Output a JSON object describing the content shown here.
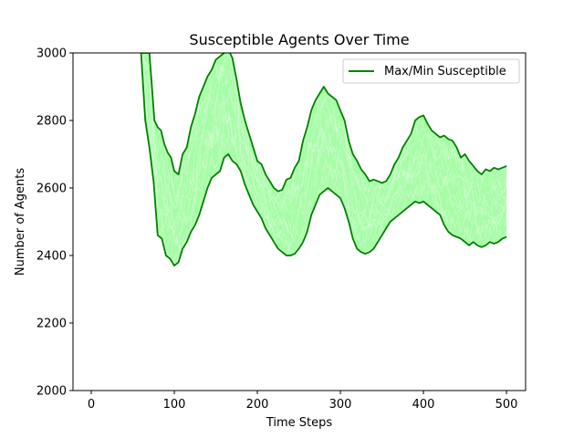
{
  "chart_data": {
    "type": "line",
    "title": "Susceptible Agents Over Time",
    "xlabel": "Time Steps",
    "ylabel": "Number of Agents",
    "xlim": [
      -22,
      523
    ],
    "ylim": [
      2000,
      3000
    ],
    "x_ticks": [
      0,
      100,
      200,
      300,
      400,
      500
    ],
    "y_ticks": [
      2000,
      2200,
      2400,
      2600,
      2800,
      3000
    ],
    "grid": false,
    "legend": {
      "position": "top-right",
      "entries": [
        "Max/Min Susceptible"
      ]
    },
    "colors": {
      "band": "#98fb98",
      "minmax": "#008000"
    },
    "series": [
      {
        "name": "Max/Min Susceptible",
        "role": "max",
        "x": [
          60,
          65,
          70,
          73,
          76,
          80,
          84,
          88,
          92,
          96,
          100,
          105,
          110,
          115,
          120,
          125,
          130,
          135,
          140,
          145,
          150,
          155,
          160,
          165,
          170,
          175,
          180,
          185,
          190,
          195,
          200,
          205,
          210,
          215,
          220,
          225,
          230,
          235,
          240,
          245,
          250,
          255,
          260,
          265,
          270,
          275,
          280,
          285,
          290,
          295,
          300,
          305,
          310,
          315,
          320,
          325,
          330,
          335,
          340,
          345,
          350,
          355,
          360,
          365,
          370,
          375,
          380,
          385,
          390,
          395,
          400,
          405,
          410,
          415,
          420,
          425,
          430,
          435,
          440,
          445,
          450,
          455,
          460,
          465,
          470,
          475,
          480,
          485,
          490,
          495,
          500
        ],
        "values": [
          3000,
          3000,
          3000,
          2900,
          2800,
          2780,
          2770,
          2730,
          2705,
          2690,
          2650,
          2640,
          2700,
          2720,
          2780,
          2820,
          2870,
          2900,
          2930,
          2950,
          2980,
          2990,
          3000,
          3010,
          2985,
          2920,
          2850,
          2800,
          2760,
          2720,
          2680,
          2670,
          2640,
          2620,
          2600,
          2590,
          2595,
          2625,
          2630,
          2660,
          2680,
          2740,
          2780,
          2830,
          2860,
          2880,
          2900,
          2880,
          2870,
          2860,
          2830,
          2800,
          2740,
          2700,
          2680,
          2655,
          2640,
          2620,
          2625,
          2620,
          2615,
          2620,
          2640,
          2670,
          2690,
          2720,
          2740,
          2760,
          2800,
          2810,
          2815,
          2790,
          2770,
          2760,
          2750,
          2755,
          2745,
          2740,
          2720,
          2690,
          2700,
          2680,
          2665,
          2650,
          2640,
          2655,
          2650,
          2660,
          2655,
          2660,
          2665
        ]
      },
      {
        "name": "",
        "role": "min",
        "x": [
          60,
          65,
          70,
          75,
          80,
          85,
          90,
          95,
          100,
          105,
          110,
          115,
          120,
          125,
          130,
          135,
          140,
          145,
          150,
          155,
          160,
          165,
          170,
          175,
          180,
          185,
          190,
          195,
          200,
          205,
          210,
          215,
          220,
          225,
          230,
          235,
          240,
          245,
          250,
          255,
          260,
          265,
          270,
          275,
          280,
          285,
          290,
          295,
          300,
          305,
          310,
          315,
          320,
          325,
          330,
          335,
          340,
          345,
          350,
          355,
          360,
          365,
          370,
          375,
          380,
          385,
          390,
          395,
          400,
          405,
          410,
          415,
          420,
          425,
          430,
          435,
          440,
          445,
          450,
          455,
          460,
          465,
          470,
          475,
          480,
          485,
          490,
          495,
          500
        ],
        "values": [
          3000,
          2800,
          2720,
          2620,
          2460,
          2450,
          2400,
          2390,
          2370,
          2380,
          2420,
          2440,
          2470,
          2490,
          2520,
          2560,
          2600,
          2630,
          2640,
          2650,
          2690,
          2700,
          2680,
          2670,
          2650,
          2610,
          2580,
          2550,
          2530,
          2510,
          2480,
          2460,
          2440,
          2420,
          2410,
          2400,
          2400,
          2405,
          2420,
          2440,
          2470,
          2520,
          2550,
          2580,
          2590,
          2600,
          2590,
          2580,
          2570,
          2540,
          2500,
          2450,
          2420,
          2410,
          2405,
          2410,
          2420,
          2440,
          2460,
          2480,
          2500,
          2510,
          2520,
          2530,
          2540,
          2550,
          2560,
          2555,
          2560,
          2550,
          2540,
          2530,
          2520,
          2490,
          2470,
          2460,
          2455,
          2450,
          2440,
          2430,
          2440,
          2430,
          2425,
          2430,
          2440,
          2435,
          2440,
          2450,
          2455
        ]
      }
    ]
  }
}
